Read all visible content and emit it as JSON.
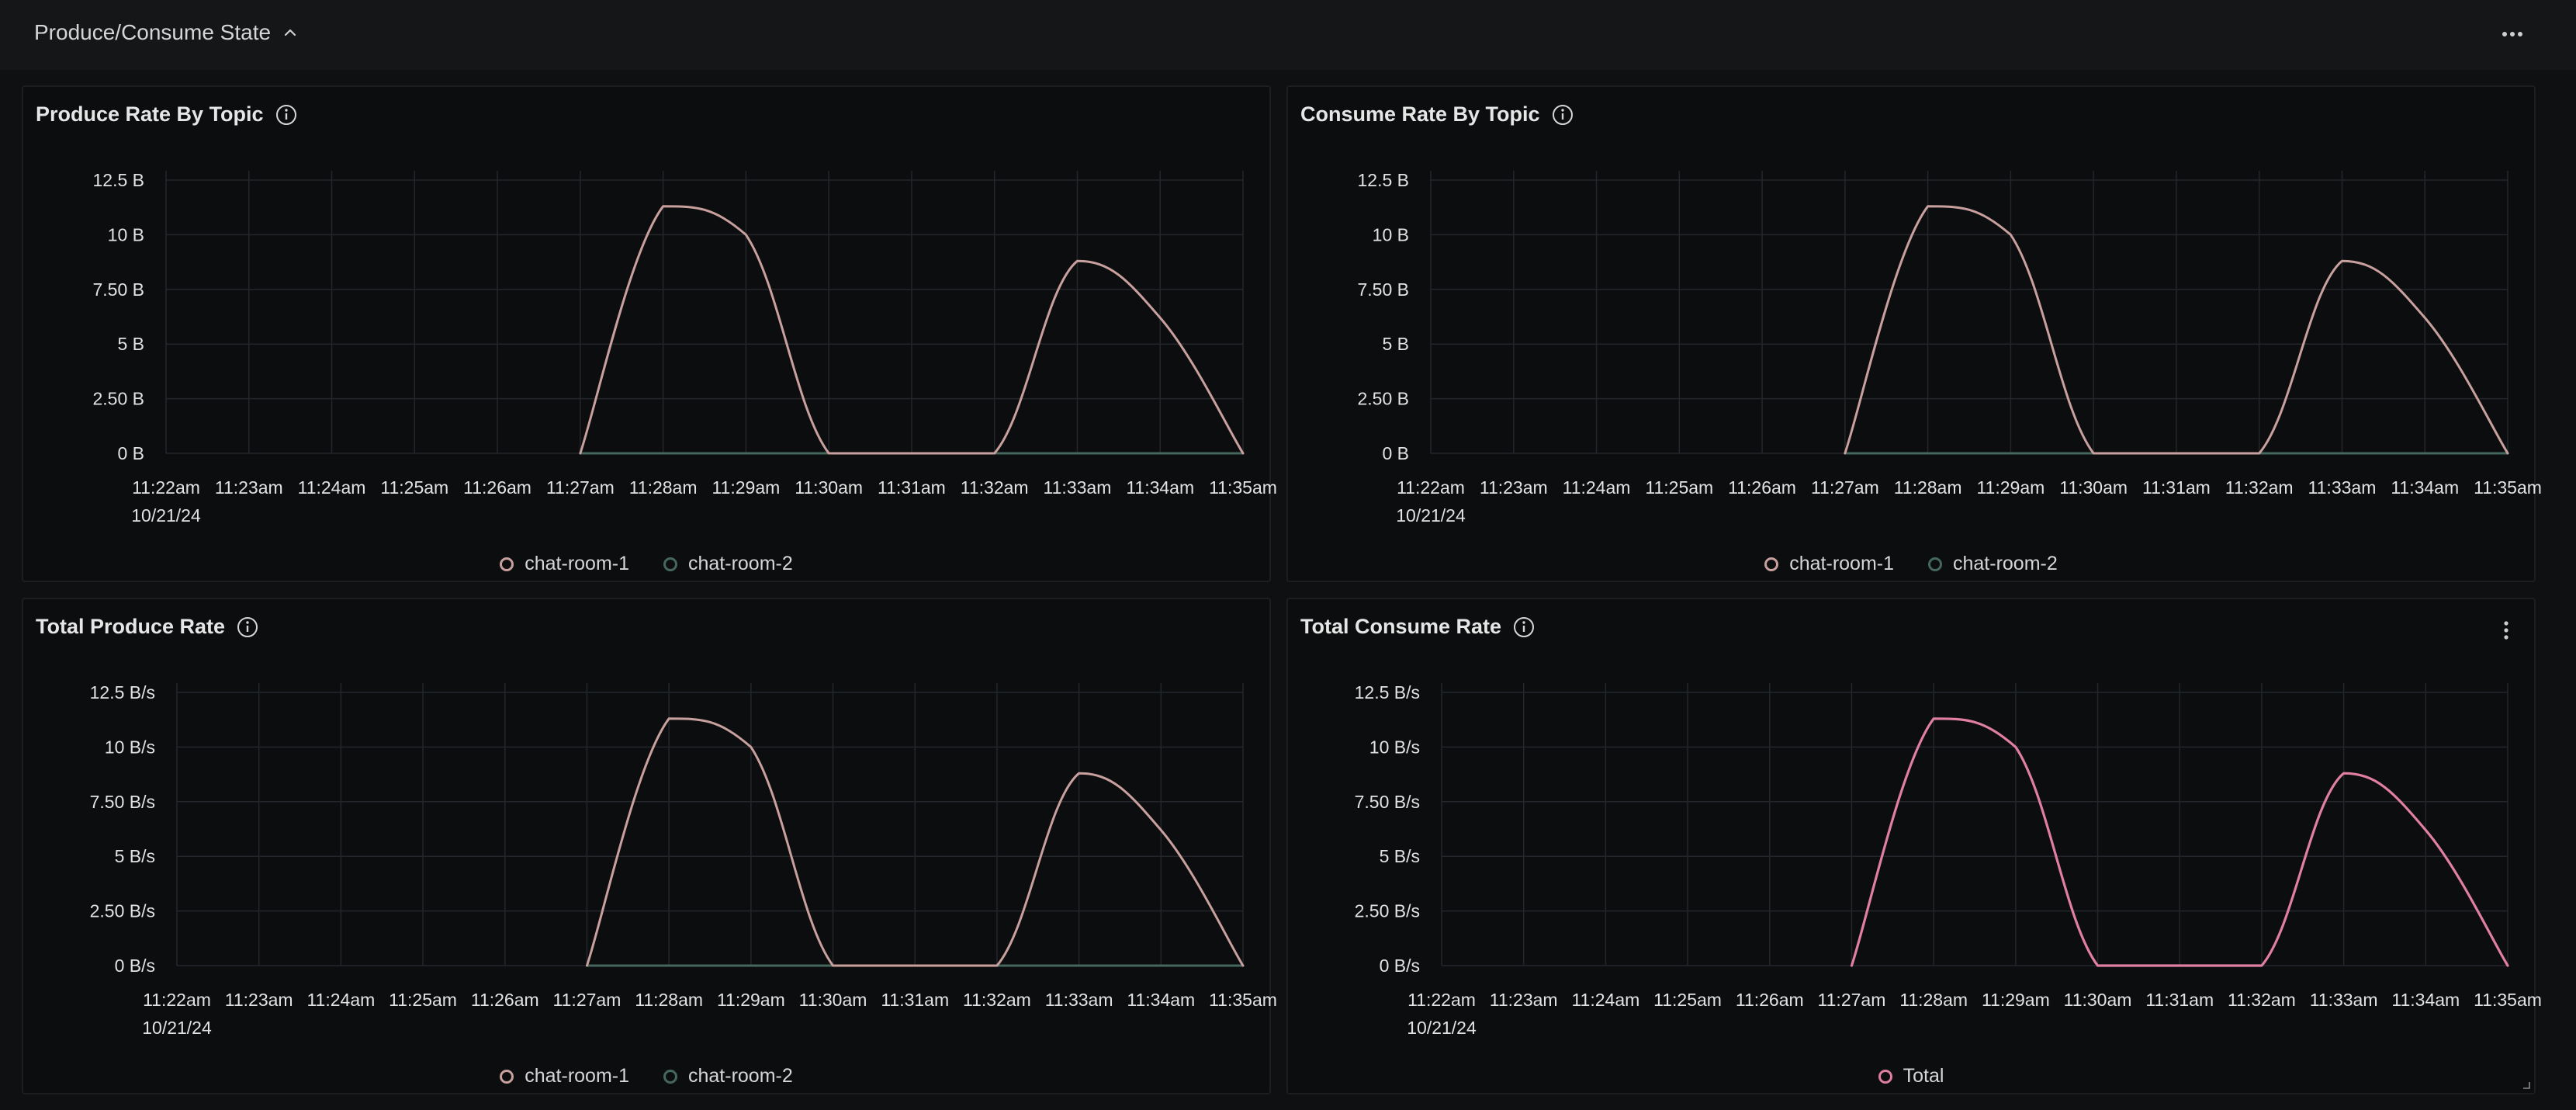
{
  "section": {
    "title": "Produce/Consume State",
    "chevron_icon": "chevron-up-icon",
    "more_icon": "more-horizontal-icon"
  },
  "colors": {
    "series_1": "#c8a09e",
    "series_2": "#46685c",
    "total": "#e07fa2",
    "grid": "#23272b"
  },
  "panels": [
    {
      "title": "Produce Rate By Topic",
      "info_icon": "info-icon",
      "legend": [
        {
          "label": "chat-room-1",
          "color": "#c8a09e"
        },
        {
          "label": "chat-room-2",
          "color": "#46685c"
        }
      ]
    },
    {
      "title": "Consume Rate By Topic",
      "info_icon": "info-icon",
      "legend": [
        {
          "label": "chat-room-1",
          "color": "#c8a09e"
        },
        {
          "label": "chat-room-2",
          "color": "#46685c"
        }
      ]
    },
    {
      "title": "Total Produce Rate",
      "info_icon": "info-icon",
      "legend": [
        {
          "label": "chat-room-1",
          "color": "#c8a09e"
        },
        {
          "label": "chat-room-2",
          "color": "#46685c"
        }
      ]
    },
    {
      "title": "Total Consume Rate",
      "info_icon": "info-icon",
      "menu_icon": "more-vertical-icon",
      "legend": [
        {
          "label": "Total",
          "color": "#e07fa2"
        }
      ]
    }
  ],
  "chart_data": [
    {
      "type": "line",
      "categories": [
        "11:22am",
        "11:23am",
        "11:24am",
        "11:25am",
        "11:26am",
        "11:27am",
        "11:28am",
        "11:29am",
        "11:30am",
        "11:31am",
        "11:32am",
        "11:33am",
        "11:34am",
        "11:35am"
      ],
      "date_label": "10/21/24",
      "ytick_labels": [
        "0 B",
        "2.50 B",
        "5 B",
        "7.50 B",
        "10 B",
        "12.5 B"
      ],
      "ylim": [
        0,
        12.5
      ],
      "grid": true,
      "legend_position": "bottom",
      "series": [
        {
          "name": "chat-room-1",
          "values": [
            null,
            null,
            null,
            null,
            null,
            0,
            11.3,
            10,
            0,
            0,
            0,
            8.8,
            6.2,
            0
          ]
        },
        {
          "name": "chat-room-2",
          "values": [
            null,
            null,
            null,
            null,
            null,
            0,
            0,
            0,
            0,
            0,
            0,
            0,
            0,
            0
          ]
        }
      ]
    },
    {
      "type": "line",
      "categories": [
        "11:22am",
        "11:23am",
        "11:24am",
        "11:25am",
        "11:26am",
        "11:27am",
        "11:28am",
        "11:29am",
        "11:30am",
        "11:31am",
        "11:32am",
        "11:33am",
        "11:34am",
        "11:35am"
      ],
      "date_label": "10/21/24",
      "ytick_labels": [
        "0 B",
        "2.50 B",
        "5 B",
        "7.50 B",
        "10 B",
        "12.5 B"
      ],
      "ylim": [
        0,
        12.5
      ],
      "grid": true,
      "legend_position": "bottom",
      "series": [
        {
          "name": "chat-room-1",
          "values": [
            null,
            null,
            null,
            null,
            null,
            0,
            11.3,
            10,
            0,
            0,
            0,
            8.8,
            6.2,
            0
          ]
        },
        {
          "name": "chat-room-2",
          "values": [
            null,
            null,
            null,
            null,
            null,
            0,
            0,
            0,
            0,
            0,
            0,
            0,
            0,
            0
          ]
        }
      ]
    },
    {
      "type": "line",
      "categories": [
        "11:22am",
        "11:23am",
        "11:24am",
        "11:25am",
        "11:26am",
        "11:27am",
        "11:28am",
        "11:29am",
        "11:30am",
        "11:31am",
        "11:32am",
        "11:33am",
        "11:34am",
        "11:35am"
      ],
      "date_label": "10/21/24",
      "ytick_labels": [
        "0 B/s",
        "2.50 B/s",
        "5 B/s",
        "7.50 B/s",
        "10 B/s",
        "12.5 B/s"
      ],
      "ylim": [
        0,
        12.5
      ],
      "grid": true,
      "legend_position": "bottom",
      "series": [
        {
          "name": "chat-room-1",
          "values": [
            null,
            null,
            null,
            null,
            null,
            0,
            11.3,
            10,
            0,
            0,
            0,
            8.8,
            6.2,
            0
          ]
        },
        {
          "name": "chat-room-2",
          "values": [
            null,
            null,
            null,
            null,
            null,
            0,
            0,
            0,
            0,
            0,
            0,
            0,
            0,
            0
          ]
        }
      ]
    },
    {
      "type": "line",
      "categories": [
        "11:22am",
        "11:23am",
        "11:24am",
        "11:25am",
        "11:26am",
        "11:27am",
        "11:28am",
        "11:29am",
        "11:30am",
        "11:31am",
        "11:32am",
        "11:33am",
        "11:34am",
        "11:35am"
      ],
      "date_label": "10/21/24",
      "ytick_labels": [
        "0 B/s",
        "2.50 B/s",
        "5 B/s",
        "7.50 B/s",
        "10 B/s",
        "12.5 B/s"
      ],
      "ylim": [
        0,
        12.5
      ],
      "grid": true,
      "legend_position": "bottom",
      "series": [
        {
          "name": "Total",
          "values": [
            null,
            null,
            null,
            null,
            null,
            0,
            11.3,
            10,
            0,
            0,
            0,
            8.8,
            6.2,
            0
          ]
        }
      ]
    }
  ]
}
